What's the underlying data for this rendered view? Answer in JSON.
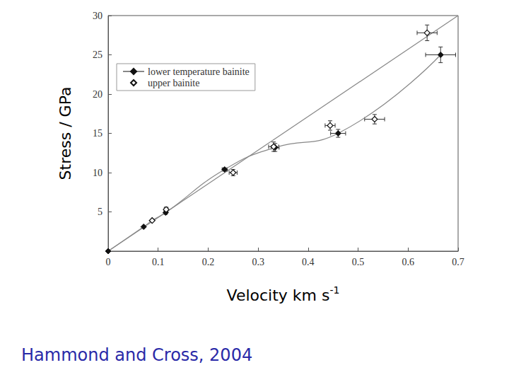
{
  "chart_data": {
    "type": "scatter",
    "xlabel": "Velocity km s-1",
    "ylabel": "Stress / GPa",
    "caption": "Hammond and Cross, 2004",
    "xlim": [
      0,
      0.7
    ],
    "xticks": [
      0,
      0.1,
      0.2,
      0.3,
      0.4,
      0.5,
      0.6,
      0.7
    ],
    "ylim": [
      0,
      30
    ],
    "yticks": [
      5,
      10,
      15,
      20,
      25,
      30
    ],
    "grid": false,
    "legend": "upper left",
    "series": [
      {
        "name": "lower temperature bainite",
        "color": "#111111",
        "marker": "diamond",
        "line_style": "smooth",
        "x": [
          0,
          0.071,
          0.088,
          0.115,
          0.233,
          0.334,
          0.46,
          0.665
        ],
        "values": [
          0,
          3.1,
          3.9,
          4.9,
          10.4,
          13.2,
          15.0,
          25.0
        ],
        "xerr": [
          0,
          0,
          0,
          0.003,
          0.005,
          0.008,
          0.015,
          0.03
        ],
        "yerr": [
          0,
          0,
          0,
          0,
          0.2,
          0.5,
          0.5,
          1.0
        ]
      },
      {
        "name": "upper bainite",
        "color": "#111111",
        "marker": "open_diamond",
        "line_style": "none",
        "x": [
          0.088,
          0.116,
          0.25,
          0.331,
          0.444,
          0.533,
          0.638
        ],
        "values": [
          3.9,
          5.3,
          10.0,
          13.3,
          16.0,
          16.8,
          27.8
        ],
        "xerr": [
          0,
          0.004,
          0.008,
          0.01,
          0.01,
          0.02,
          0.02
        ],
        "yerr": [
          0,
          0.3,
          0.4,
          0.6,
          0.6,
          0.6,
          1.0
        ],
        "trend": {
          "x": [
            0,
            0.7
          ],
          "values": [
            0,
            30
          ]
        }
      }
    ]
  }
}
